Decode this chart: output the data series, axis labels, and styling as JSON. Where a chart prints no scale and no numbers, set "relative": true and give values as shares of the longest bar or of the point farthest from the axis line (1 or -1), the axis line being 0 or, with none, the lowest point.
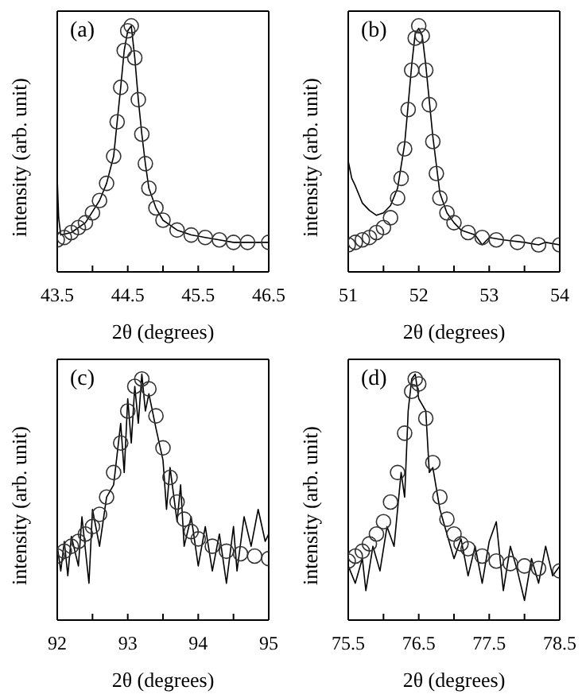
{
  "chart_data": [
    {
      "type": "line",
      "relative": true,
      "xlabel": "2θ (degrees)",
      "ylabel": "intensity (arb. unit)",
      "annotations": [
        "(a)"
      ],
      "xlim": [
        43.5,
        46.5
      ],
      "xticks": [
        43.5,
        {
          "value": 44,
          "label": null
        },
        44.5,
        {
          "value": 45,
          "label": null
        },
        45.5,
        {
          "value": 46,
          "label": null
        },
        46.5
      ],
      "series": [
        {
          "color": "#000000",
          "marker": "none",
          "line_style": "solid",
          "x": [
            43.5,
            43.52,
            43.55,
            43.7,
            43.9,
            44.1,
            44.2,
            44.3,
            44.35,
            44.4,
            44.45,
            44.5,
            44.55,
            44.6,
            44.65,
            44.7,
            44.75,
            44.8,
            44.9,
            45.0,
            45.2,
            45.4,
            45.6,
            45.8,
            46.0,
            46.2,
            46.5
          ],
          "values": [
            0.38,
            0.22,
            0.15,
            0.16,
            0.2,
            0.29,
            0.36,
            0.47,
            0.61,
            0.75,
            0.9,
            0.98,
            1.0,
            0.87,
            0.7,
            0.56,
            0.44,
            0.34,
            0.26,
            0.21,
            0.17,
            0.15,
            0.14,
            0.13,
            0.12,
            0.12,
            0.12
          ]
        },
        {
          "type": "scatter",
          "color": "#333333",
          "marker": "circle",
          "x": [
            43.5,
            43.6,
            43.7,
            43.8,
            43.9,
            44.0,
            44.1,
            44.2,
            44.3,
            44.35,
            44.4,
            44.45,
            44.5,
            44.55,
            44.6,
            44.65,
            44.7,
            44.75,
            44.8,
            44.9,
            45.0,
            45.2,
            45.4,
            45.6,
            45.8,
            46.0,
            46.2,
            46.5
          ],
          "values": [
            0.13,
            0.14,
            0.16,
            0.18,
            0.2,
            0.24,
            0.29,
            0.36,
            0.47,
            0.61,
            0.75,
            0.9,
            0.98,
            1.0,
            0.87,
            0.7,
            0.56,
            0.44,
            0.34,
            0.26,
            0.21,
            0.17,
            0.15,
            0.14,
            0.13,
            0.12,
            0.12,
            0.12
          ]
        }
      ]
    },
    {
      "type": "line",
      "relative": true,
      "xlabel": "2θ (degrees)",
      "ylabel": "intensity (arb. unit)",
      "annotations": [
        "(b)"
      ],
      "xlim": [
        51,
        54
      ],
      "xticks": [
        51,
        {
          "value": 51.5,
          "label": null
        },
        52,
        {
          "value": 52.5,
          "label": null
        },
        53,
        {
          "value": 53.5,
          "label": null
        },
        54
      ],
      "series": [
        {
          "color": "#000000",
          "marker": "none",
          "line_style": "solid",
          "x": [
            51,
            51.05,
            51.1,
            51.2,
            51.3,
            51.4,
            51.5,
            51.6,
            51.7,
            51.8,
            51.9,
            51.95,
            52.0,
            52.05,
            52.1,
            52.2,
            52.3,
            52.4,
            52.5,
            52.6,
            52.8,
            52.9,
            53.0,
            53.2,
            53.5,
            53.7,
            53.8,
            54
          ],
          "values": [
            0.45,
            0.38,
            0.35,
            0.28,
            0.25,
            0.23,
            0.24,
            0.27,
            0.34,
            0.52,
            0.84,
            0.97,
            0.99,
            0.96,
            0.84,
            0.55,
            0.32,
            0.24,
            0.2,
            0.17,
            0.15,
            0.11,
            0.14,
            0.13,
            0.12,
            0.11,
            0.12,
            0.11
          ]
        },
        {
          "type": "scatter",
          "color": "#333333",
          "marker": "circle",
          "x": [
            51,
            51.1,
            51.2,
            51.3,
            51.4,
            51.5,
            51.6,
            51.7,
            51.75,
            51.8,
            51.85,
            51.9,
            51.95,
            52.0,
            52.05,
            52.1,
            52.15,
            52.2,
            52.25,
            52.3,
            52.4,
            52.5,
            52.7,
            52.9,
            53.1,
            53.4,
            53.7,
            54
          ],
          "values": [
            0.11,
            0.12,
            0.13,
            0.14,
            0.16,
            0.18,
            0.22,
            0.3,
            0.38,
            0.5,
            0.66,
            0.82,
            0.95,
            1.0,
            0.96,
            0.82,
            0.68,
            0.53,
            0.4,
            0.3,
            0.24,
            0.2,
            0.16,
            0.14,
            0.13,
            0.12,
            0.11,
            0.11
          ]
        }
      ]
    },
    {
      "type": "line",
      "relative": true,
      "xlabel": "2θ (degrees)",
      "ylabel": "intensity (arb. unit)",
      "annotations": [
        "(c)"
      ],
      "xlim": [
        92,
        95
      ],
      "xticks": [
        92,
        {
          "value": 92.5,
          "label": null
        },
        93,
        {
          "value": 93.5,
          "label": null
        },
        94,
        {
          "value": 94.5,
          "label": null
        },
        95
      ],
      "series": [
        {
          "color": "#000000",
          "marker": "none",
          "line_style": "solid",
          "x": [
            92,
            92.05,
            92.1,
            92.15,
            92.2,
            92.3,
            92.35,
            92.45,
            92.5,
            92.6,
            92.7,
            92.8,
            92.9,
            92.95,
            93.0,
            93.05,
            93.1,
            93.15,
            93.2,
            93.25,
            93.3,
            93.4,
            93.5,
            93.55,
            93.6,
            93.7,
            93.75,
            93.8,
            93.9,
            94.0,
            94.1,
            94.2,
            94.3,
            94.4,
            94.5,
            94.55,
            94.65,
            94.75,
            94.85,
            94.95,
            95
          ],
          "values": [
            0.3,
            0.2,
            0.32,
            0.18,
            0.34,
            0.22,
            0.42,
            0.15,
            0.45,
            0.3,
            0.5,
            0.55,
            0.8,
            0.6,
            0.9,
            0.72,
            0.95,
            0.8,
            1.0,
            0.85,
            0.92,
            0.78,
            0.65,
            0.45,
            0.62,
            0.4,
            0.55,
            0.3,
            0.42,
            0.22,
            0.38,
            0.2,
            0.35,
            0.15,
            0.38,
            0.2,
            0.42,
            0.3,
            0.45,
            0.32,
            0.35
          ]
        },
        {
          "type": "scatter",
          "color": "#333333",
          "marker": "circle",
          "x": [
            92,
            92.1,
            92.2,
            92.3,
            92.4,
            92.5,
            92.6,
            92.7,
            92.8,
            92.9,
            93.0,
            93.1,
            93.2,
            93.3,
            93.4,
            93.5,
            93.6,
            93.7,
            93.8,
            93.9,
            94.0,
            94.2,
            94.4,
            94.6,
            94.8,
            95
          ],
          "values": [
            0.26,
            0.28,
            0.3,
            0.32,
            0.35,
            0.38,
            0.43,
            0.5,
            0.6,
            0.72,
            0.85,
            0.95,
            0.98,
            0.94,
            0.83,
            0.7,
            0.58,
            0.48,
            0.41,
            0.36,
            0.33,
            0.3,
            0.28,
            0.27,
            0.26,
            0.25
          ]
        }
      ]
    },
    {
      "type": "line",
      "relative": true,
      "xlabel": "2θ (degrees)",
      "ylabel": "intensity (arb. unit)",
      "annotations": [
        "(d)"
      ],
      "xlim": [
        75.5,
        78.5
      ],
      "xticks": [
        75.5,
        {
          "value": 76,
          "label": null
        },
        76.5,
        {
          "value": 77,
          "label": null
        },
        77.5,
        {
          "value": 78,
          "label": null
        },
        78.5
      ],
      "series": [
        {
          "color": "#000000",
          "marker": "none",
          "line_style": "solid",
          "x": [
            75.5,
            75.6,
            75.7,
            75.75,
            75.85,
            75.95,
            76.05,
            76.15,
            76.25,
            76.3,
            76.35,
            76.4,
            76.45,
            76.5,
            76.6,
            76.65,
            76.7,
            76.8,
            76.9,
            77.0,
            77.1,
            77.2,
            77.3,
            77.4,
            77.5,
            77.6,
            77.7,
            77.8,
            77.9,
            78.0,
            78.1,
            78.2,
            78.3,
            78.4,
            78.5
          ],
          "values": [
            0.22,
            0.15,
            0.25,
            0.12,
            0.3,
            0.2,
            0.38,
            0.3,
            0.6,
            0.5,
            0.85,
            0.98,
            1.0,
            0.9,
            0.85,
            0.6,
            0.62,
            0.45,
            0.35,
            0.25,
            0.33,
            0.18,
            0.3,
            0.15,
            0.32,
            0.4,
            0.12,
            0.3,
            0.2,
            0.08,
            0.25,
            0.15,
            0.3,
            0.18,
            0.22
          ]
        },
        {
          "type": "scatter",
          "color": "#333333",
          "marker": "circle",
          "x": [
            75.5,
            75.6,
            75.7,
            75.8,
            75.9,
            76.0,
            76.1,
            76.2,
            76.3,
            76.4,
            76.45,
            76.5,
            76.6,
            76.7,
            76.8,
            76.9,
            77.0,
            77.1,
            77.2,
            77.4,
            77.6,
            77.8,
            78.0,
            78.2,
            78.5
          ],
          "values": [
            0.24,
            0.26,
            0.28,
            0.31,
            0.35,
            0.4,
            0.48,
            0.6,
            0.76,
            0.93,
            0.98,
            0.96,
            0.82,
            0.64,
            0.5,
            0.41,
            0.35,
            0.31,
            0.29,
            0.26,
            0.24,
            0.23,
            0.22,
            0.21,
            0.2
          ]
        }
      ]
    }
  ]
}
